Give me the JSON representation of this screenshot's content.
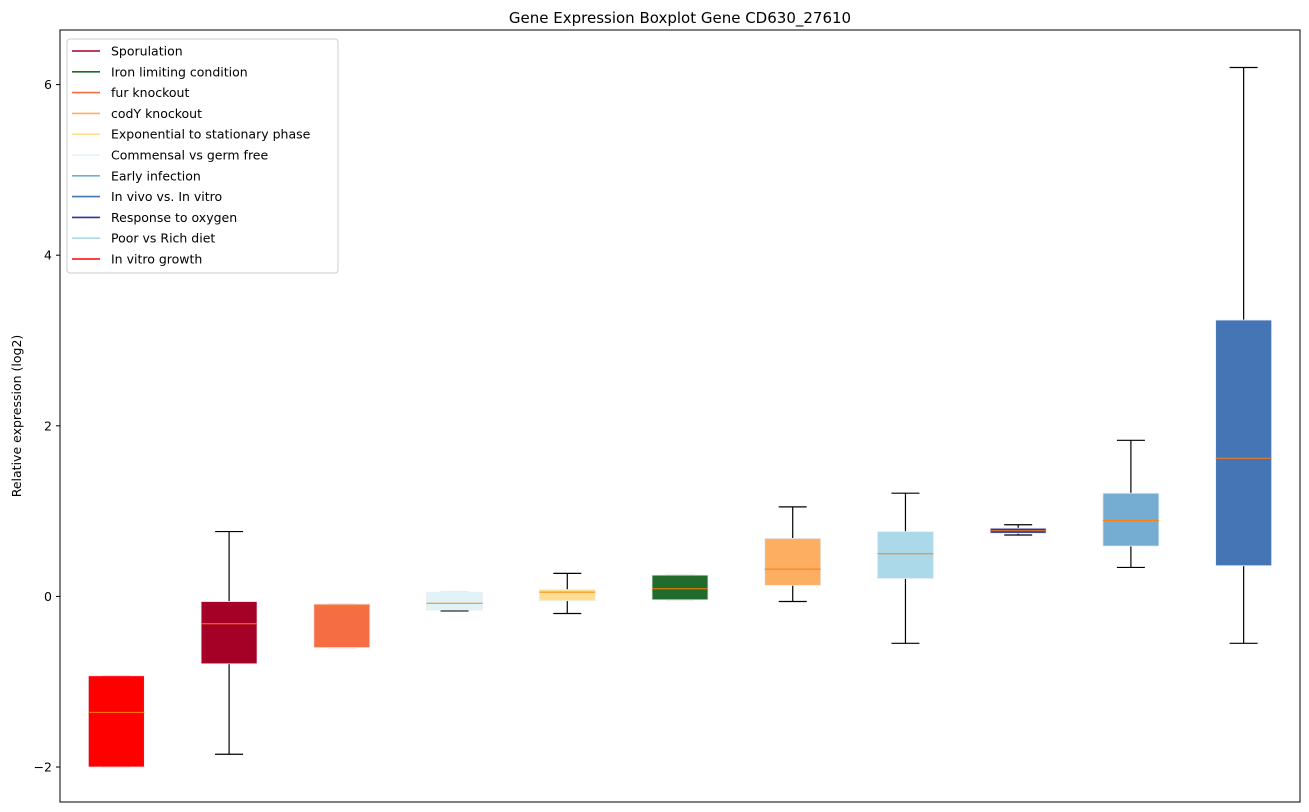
{
  "chart_data": {
    "type": "boxplot",
    "title": "Gene Expression Boxplot Gene CD630_27610",
    "xlabel": "",
    "ylabel": "Relative expression (log2)",
    "ylim": [
      -2.41,
      6.64
    ],
    "yticks": [
      -2,
      0,
      2,
      4,
      6
    ],
    "ytick_labels": [
      "−2",
      "0",
      "2",
      "4",
      "6"
    ],
    "grid": false,
    "legend_placement": "top-left",
    "legend": [
      {
        "label": "Sporulation",
        "color": "#a50026"
      },
      {
        "label": "Iron limiting condition",
        "color": "#216c2c"
      },
      {
        "label": "fur knockout",
        "color": "#f46d43"
      },
      {
        "label": "codY knockout",
        "color": "#fdae61"
      },
      {
        "label": "Exponential to stationary phase",
        "color": "#fee090"
      },
      {
        "label": "Commensal vs germ free",
        "color": "#e0f3f8"
      },
      {
        "label": "Early infection",
        "color": "#74add1"
      },
      {
        "label": "In vivo vs. In vitro",
        "color": "#4575b4"
      },
      {
        "label": "Response to oxygen",
        "color": "#313695"
      },
      {
        "label": "Poor vs Rich diet",
        "color": "#abd9e9"
      },
      {
        "label": "In vitro growth",
        "color": "#ff0000"
      }
    ],
    "median_color": "#ff7f0e",
    "boxes": [
      {
        "name": "In vitro growth",
        "color": "#ff0000",
        "whislo": -2.0,
        "q1": -2.0,
        "med": -1.36,
        "q3": -0.93,
        "whishi": -0.93
      },
      {
        "name": "Sporulation",
        "color": "#a50026",
        "whislo": -1.85,
        "q1": -0.79,
        "med": -0.32,
        "q3": -0.06,
        "whishi": 0.76
      },
      {
        "name": "fur knockout",
        "color": "#f46d43",
        "whislo": -0.6,
        "q1": -0.6,
        "med": -0.11,
        "q3": -0.09,
        "whishi": -0.09
      },
      {
        "name": "Commensal vs germ free",
        "color": "#e0f3f8",
        "whislo": -0.17,
        "q1": -0.16,
        "med": -0.08,
        "q3": 0.05,
        "whishi": 0.05
      },
      {
        "name": "Exponential to stationary phase",
        "color": "#fee090",
        "whislo": -0.2,
        "q1": -0.05,
        "med": 0.05,
        "q3": 0.08,
        "whishi": 0.27
      },
      {
        "name": "Iron limiting condition",
        "color": "#216c2c",
        "whislo": -0.04,
        "q1": -0.04,
        "med": 0.09,
        "q3": 0.25,
        "whishi": 0.25
      },
      {
        "name": "codY knockout",
        "color": "#fdae61",
        "whislo": -0.06,
        "q1": 0.13,
        "med": 0.32,
        "q3": 0.68,
        "whishi": 1.05
      },
      {
        "name": "Poor vs Rich diet",
        "color": "#abd9e9",
        "whislo": -0.55,
        "q1": 0.21,
        "med": 0.5,
        "q3": 0.76,
        "whishi": 1.21
      },
      {
        "name": "Response to oxygen",
        "color": "#313695",
        "whislo": 0.72,
        "q1": 0.74,
        "med": 0.77,
        "q3": 0.8,
        "whishi": 0.84
      },
      {
        "name": "Early infection",
        "color": "#74add1",
        "whislo": 0.34,
        "q1": 0.59,
        "med": 0.89,
        "q3": 1.21,
        "whishi": 1.83
      },
      {
        "name": "In vivo vs. In vitro",
        "color": "#4575b4",
        "whislo": -0.55,
        "q1": 0.36,
        "med": 1.62,
        "q3": 3.24,
        "whishi": 6.2
      }
    ]
  }
}
